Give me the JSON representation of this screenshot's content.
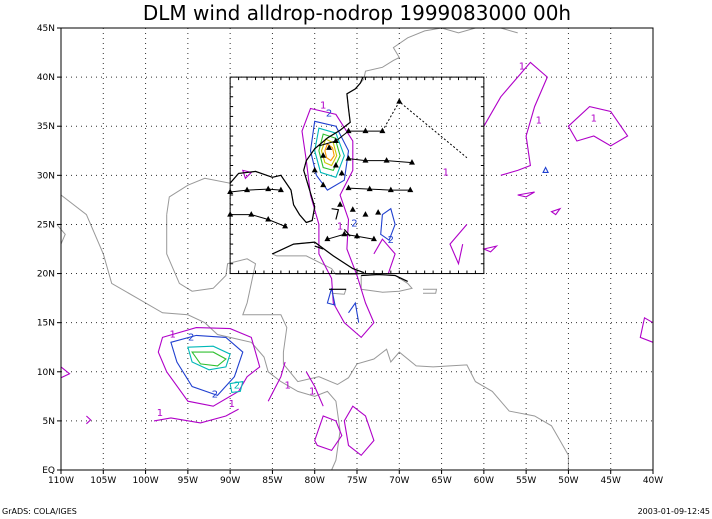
{
  "title": "DLM wind alldrop-nodrop 1999083000 00h",
  "footer_left": "GrADS: COLA/IGES",
  "footer_right": "2003-01-09-12:45",
  "map": {
    "lon_range": [
      -110,
      -40
    ],
    "lat_range": [
      0,
      45
    ],
    "lon_ticks": [
      {
        "v": -110,
        "label": "110W"
      },
      {
        "v": -105,
        "label": "105W"
      },
      {
        "v": -100,
        "label": "100W"
      },
      {
        "v": -95,
        "label": "95W"
      },
      {
        "v": -90,
        "label": "90W"
      },
      {
        "v": -85,
        "label": "85W"
      },
      {
        "v": -80,
        "label": "80W"
      },
      {
        "v": -75,
        "label": "75W"
      },
      {
        "v": -70,
        "label": "70W"
      },
      {
        "v": -65,
        "label": "65W"
      },
      {
        "v": -60,
        "label": "60W"
      },
      {
        "v": -55,
        "label": "55W"
      },
      {
        "v": -50,
        "label": "50W"
      },
      {
        "v": -45,
        "label": "45W"
      },
      {
        "v": -40,
        "label": "40W"
      }
    ],
    "lat_ticks": [
      {
        "v": 0,
        "label": "EQ"
      },
      {
        "v": 5,
        "label": "5N"
      },
      {
        "v": 10,
        "label": "10N"
      },
      {
        "v": 15,
        "label": "15N"
      },
      {
        "v": 20,
        "label": "20N"
      },
      {
        "v": 25,
        "label": "25N"
      },
      {
        "v": 30,
        "label": "30N"
      },
      {
        "v": 35,
        "label": "35N"
      },
      {
        "v": 40,
        "label": "40N"
      },
      {
        "v": 45,
        "label": "45N"
      }
    ],
    "inset_box": {
      "lon": [
        -90,
        -60
      ],
      "lat": [
        20,
        40
      ]
    },
    "colors": {
      "c1": "#b000c8",
      "c2": "#2040d0",
      "c3": "#00b8b8",
      "c4": "#30c030",
      "c5": "#c8c800",
      "c6": "#ff9900",
      "coast": "#999999"
    },
    "contour_labels": [
      {
        "text": "1",
        "lon": -96.8,
        "lat": 13.5,
        "c": "c1"
      },
      {
        "text": "2",
        "lon": -94.6,
        "lat": 13.2,
        "c": "c2"
      },
      {
        "text": "2",
        "lon": -91.8,
        "lat": 7.4,
        "c": "c2"
      },
      {
        "text": "1",
        "lon": -89.8,
        "lat": 6.4,
        "c": "c1"
      },
      {
        "text": "1",
        "lon": -98.3,
        "lat": 5.5,
        "c": "c1"
      },
      {
        "text": "1",
        "lon": -83.2,
        "lat": 8.3,
        "c": "c1"
      },
      {
        "text": "1",
        "lon": -80.3,
        "lat": 7.7,
        "c": "c1"
      },
      {
        "text": "2",
        "lon": -89.2,
        "lat": 8.3,
        "c": "c3"
      },
      {
        "text": "1",
        "lon": -79.0,
        "lat": 36.8,
        "c": "c1"
      },
      {
        "text": "2",
        "lon": -78.3,
        "lat": 36.0,
        "c": "c2"
      },
      {
        "text": "1",
        "lon": -77.0,
        "lat": 24.5,
        "c": "c1"
      },
      {
        "text": "2",
        "lon": -75.3,
        "lat": 24.8,
        "c": "c2"
      },
      {
        "text": "2",
        "lon": -71.0,
        "lat": 23.1,
        "c": "c2"
      },
      {
        "text": "1",
        "lon": -64.5,
        "lat": 30.0,
        "c": "c1"
      },
      {
        "text": "1",
        "lon": -55.5,
        "lat": 40.8,
        "c": "c1"
      },
      {
        "text": "1",
        "lon": -53.5,
        "lat": 35.3,
        "c": "c1"
      },
      {
        "text": "1",
        "lon": -47.0,
        "lat": 35.5,
        "c": "c1"
      }
    ],
    "drop_tracks": [
      [
        [
          -90,
          26
        ],
        [
          -87.5,
          26
        ],
        [
          -85.5,
          25.5
        ],
        [
          -83.5,
          24.8
        ]
      ],
      [
        [
          -90,
          28.3
        ],
        [
          -88,
          28.5
        ],
        [
          -85.5,
          28.6
        ],
        [
          -84,
          28.5
        ]
      ],
      [
        [
          -79.5,
          33
        ],
        [
          -77.5,
          33.5
        ],
        [
          -76,
          34.5
        ],
        [
          -74,
          34.5
        ],
        [
          -72,
          34.5
        ]
      ],
      [
        [
          -76,
          31.7
        ],
        [
          -74,
          31.5
        ],
        [
          -71.5,
          31.5
        ],
        [
          -68.5,
          31.3
        ]
      ],
      [
        [
          -76,
          28.7
        ],
        [
          -73.5,
          28.6
        ],
        [
          -71,
          28.5
        ],
        [
          -68.7,
          28.5
        ]
      ],
      [
        [
          -78.5,
          23.5
        ],
        [
          -76.5,
          24
        ],
        [
          -75,
          23.8
        ],
        [
          -73,
          23.5
        ]
      ],
      [
        [
          -72,
          34.5
        ],
        [
          -70,
          37.5
        ],
        [
          -62,
          31.8
        ]
      ]
    ],
    "drop_markers": [
      [
        -90,
        26
      ],
      [
        -87.5,
        26
      ],
      [
        -85.5,
        25.5
      ],
      [
        -83.5,
        24.8
      ],
      [
        -90,
        28.3
      ],
      [
        -88,
        28.5
      ],
      [
        -85.5,
        28.6
      ],
      [
        -84,
        28.5
      ],
      [
        -77.5,
        33.5
      ],
      [
        -76,
        34.5
      ],
      [
        -74,
        34.5
      ],
      [
        -72,
        34.5
      ],
      [
        -70,
        37.5
      ],
      [
        -76,
        31.7
      ],
      [
        -74,
        31.5
      ],
      [
        -71.5,
        31.5
      ],
      [
        -68.5,
        31.3
      ],
      [
        -76,
        28.7
      ],
      [
        -73.5,
        28.6
      ],
      [
        -71,
        28.5
      ],
      [
        -68.7,
        28.5
      ],
      [
        -78.5,
        23.5
      ],
      [
        -76.5,
        24
      ],
      [
        -75,
        23.8
      ],
      [
        -73,
        23.5
      ],
      [
        -80,
        30.5
      ],
      [
        -79,
        29
      ],
      [
        -77,
        27
      ],
      [
        -75.5,
        26.5
      ],
      [
        -74,
        26
      ],
      [
        -72.5,
        26.2
      ],
      [
        -78.3,
        32.8
      ],
      [
        -77.5,
        31
      ],
      [
        -79,
        32
      ],
      [
        -76.8,
        30.2
      ]
    ]
  }
}
